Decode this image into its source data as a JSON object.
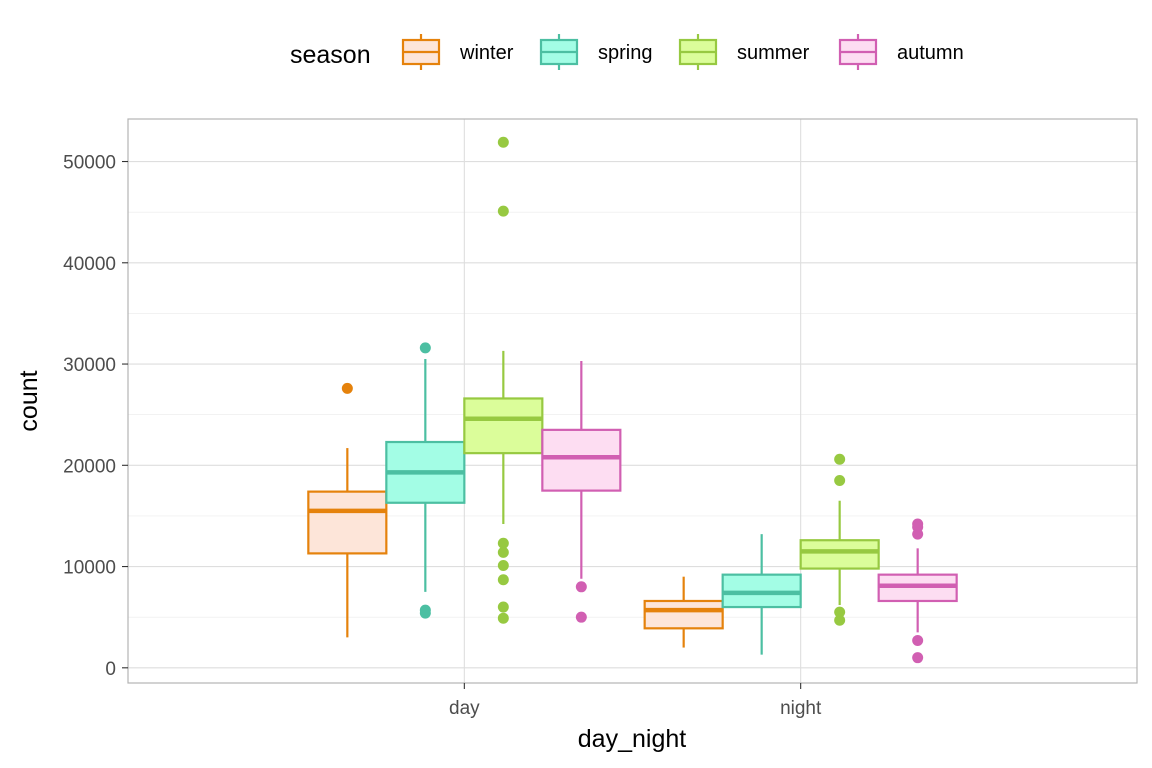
{
  "chart_data": {
    "type": "boxplot",
    "xlabel": "day_night",
    "ylabel": "count",
    "categories": [
      "day",
      "night"
    ],
    "ylim": [
      -1500,
      54200
    ],
    "yticks": [
      0,
      10000,
      20000,
      30000,
      40000,
      50000
    ],
    "grid": true,
    "legend": {
      "title": "season",
      "position": "top"
    },
    "series": [
      {
        "name": "winter",
        "stroke": "#E5820C",
        "fill": "#FDE5D9",
        "boxes": [
          {
            "category": "day",
            "lower_whisker": 3000,
            "q1": 11300,
            "median": 15500,
            "q3": 17400,
            "upper_whisker": 21700,
            "outliers": [
              27600
            ]
          },
          {
            "category": "night",
            "lower_whisker": 2000,
            "q1": 3900,
            "median": 5700,
            "q3": 6600,
            "upper_whisker": 9000,
            "outliers": []
          }
        ]
      },
      {
        "name": "spring",
        "stroke": "#4CBFA2",
        "fill": "#A3FDE5",
        "boxes": [
          {
            "category": "day",
            "lower_whisker": 7500,
            "q1": 16300,
            "median": 19300,
            "q3": 22300,
            "upper_whisker": 30500,
            "outliers": [
              31600,
              5700,
              5400
            ]
          },
          {
            "category": "night",
            "lower_whisker": 1300,
            "q1": 6000,
            "median": 7400,
            "q3": 9200,
            "upper_whisker": 13200,
            "outliers": []
          }
        ]
      },
      {
        "name": "summer",
        "stroke": "#97C941",
        "fill": "#DBFD9A",
        "boxes": [
          {
            "category": "day",
            "lower_whisker": 14200,
            "q1": 21200,
            "median": 24600,
            "q3": 26600,
            "upper_whisker": 31300,
            "outliers": [
              51900,
              45100,
              12300,
              11400,
              10100,
              8700,
              6000,
              4900
            ]
          },
          {
            "category": "night",
            "lower_whisker": 6200,
            "q1": 9800,
            "median": 11500,
            "q3": 12600,
            "upper_whisker": 16500,
            "outliers": [
              20600,
              18500,
              5500,
              4700
            ]
          }
        ]
      },
      {
        "name": "autumn",
        "stroke": "#D15FB2",
        "fill": "#FDDDF2",
        "boxes": [
          {
            "category": "day",
            "lower_whisker": 8800,
            "q1": 17500,
            "median": 20800,
            "q3": 23500,
            "upper_whisker": 30300,
            "outliers": [
              8000,
              5000
            ]
          },
          {
            "category": "night",
            "lower_whisker": 3500,
            "q1": 6600,
            "median": 8100,
            "q3": 9200,
            "upper_whisker": 11800,
            "outliers": [
              14200,
              13900,
              13200,
              2700,
              1000
            ]
          }
        ]
      }
    ]
  }
}
